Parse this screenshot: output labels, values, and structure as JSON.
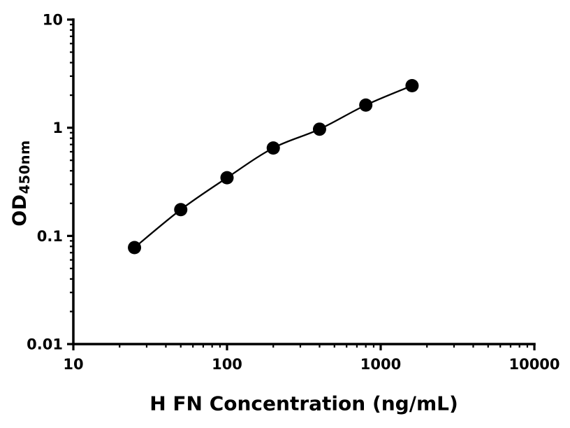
{
  "chart_data": {
    "type": "scatter",
    "title": "",
    "xlabel": "H FN Concentration (ng/mL)",
    "ylabel": "OD",
    "ylabel_subscript": "450nm",
    "xscale": "log",
    "yscale": "log",
    "xlim": [
      10,
      10000
    ],
    "ylim": [
      0.01,
      10
    ],
    "x": [
      25,
      50,
      100,
      200,
      400,
      800,
      1600
    ],
    "y": [
      0.078,
      0.175,
      0.345,
      0.65,
      0.97,
      1.62,
      2.45
    ],
    "x_major_ticks": [
      10,
      100,
      1000,
      10000
    ],
    "x_tick_labels": [
      "10",
      "100",
      "1000",
      "10000"
    ],
    "y_major_ticks": [
      0.01,
      0.1,
      1,
      10
    ],
    "y_tick_labels": [
      "0.01",
      "0.1",
      "1",
      "10"
    ],
    "grid": false,
    "legend": null,
    "line_color": "#000000",
    "marker_color": "#000000",
    "axis_color": "#000000",
    "background_color": "#ffffff"
  }
}
